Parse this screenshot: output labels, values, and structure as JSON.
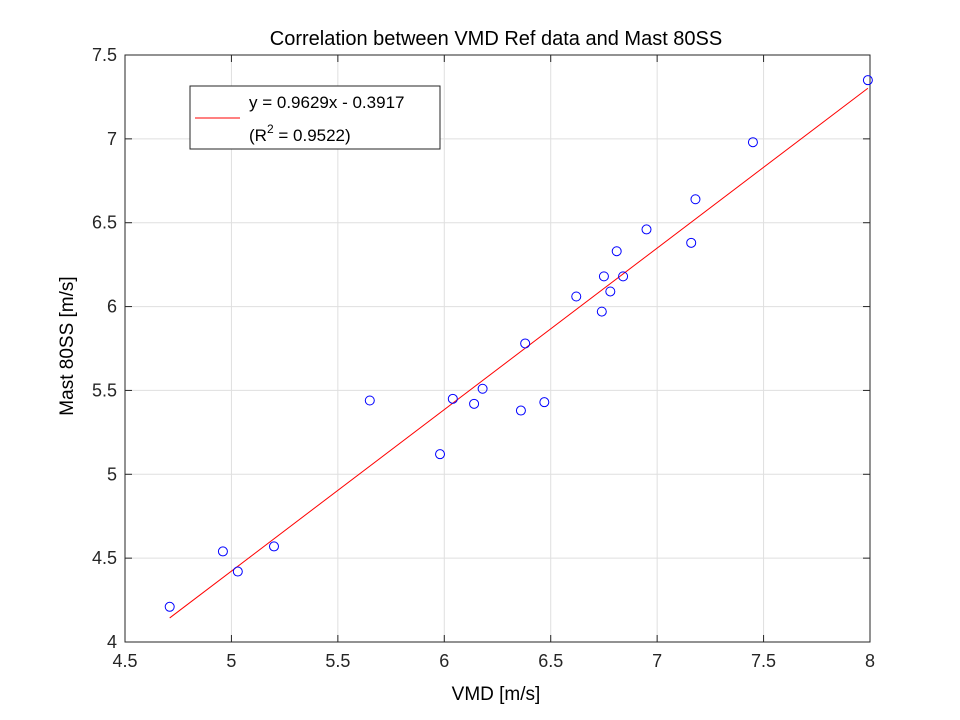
{
  "chart_data": {
    "type": "scatter",
    "title": "Correlation between VMD Ref data and Mast 80SS",
    "xlabel": "VMD [m/s]",
    "ylabel": "Mast 80SS [m/s]",
    "xlim": [
      4.5,
      8
    ],
    "ylim": [
      4,
      7.5
    ],
    "xticks": [
      "4.5",
      "5",
      "5.5",
      "6",
      "6.5",
      "7",
      "7.5",
      "8"
    ],
    "yticks": [
      "4",
      "4.5",
      "5",
      "5.5",
      "6",
      "6.5",
      "7",
      "7.5"
    ],
    "grid": true,
    "legend_position": "top-left",
    "points": {
      "x": [
        4.71,
        4.96,
        5.03,
        5.2,
        5.65,
        5.98,
        6.04,
        6.14,
        6.18,
        6.36,
        6.38,
        6.47,
        6.62,
        6.74,
        6.75,
        6.78,
        6.81,
        6.84,
        6.95,
        7.16,
        7.18,
        7.45,
        7.99
      ],
      "y": [
        4.21,
        4.54,
        4.42,
        4.57,
        5.44,
        5.12,
        5.45,
        5.42,
        5.51,
        5.38,
        5.78,
        5.43,
        6.06,
        5.97,
        6.18,
        6.09,
        6.33,
        6.18,
        6.46,
        6.38,
        6.64,
        6.98,
        7.35
      ],
      "color": "#0000ff",
      "marker": "circle"
    },
    "fit_line": {
      "slope": 0.9629,
      "intercept": -0.3917,
      "x_range": [
        4.71,
        7.99
      ],
      "color": "#ff0000",
      "legend_line1": "y = 0.9629x - 0.3917",
      "legend_line2_prefix": "(R",
      "legend_line2_sup": "2",
      "legend_line2_suffix": " = 0.9522)"
    }
  }
}
